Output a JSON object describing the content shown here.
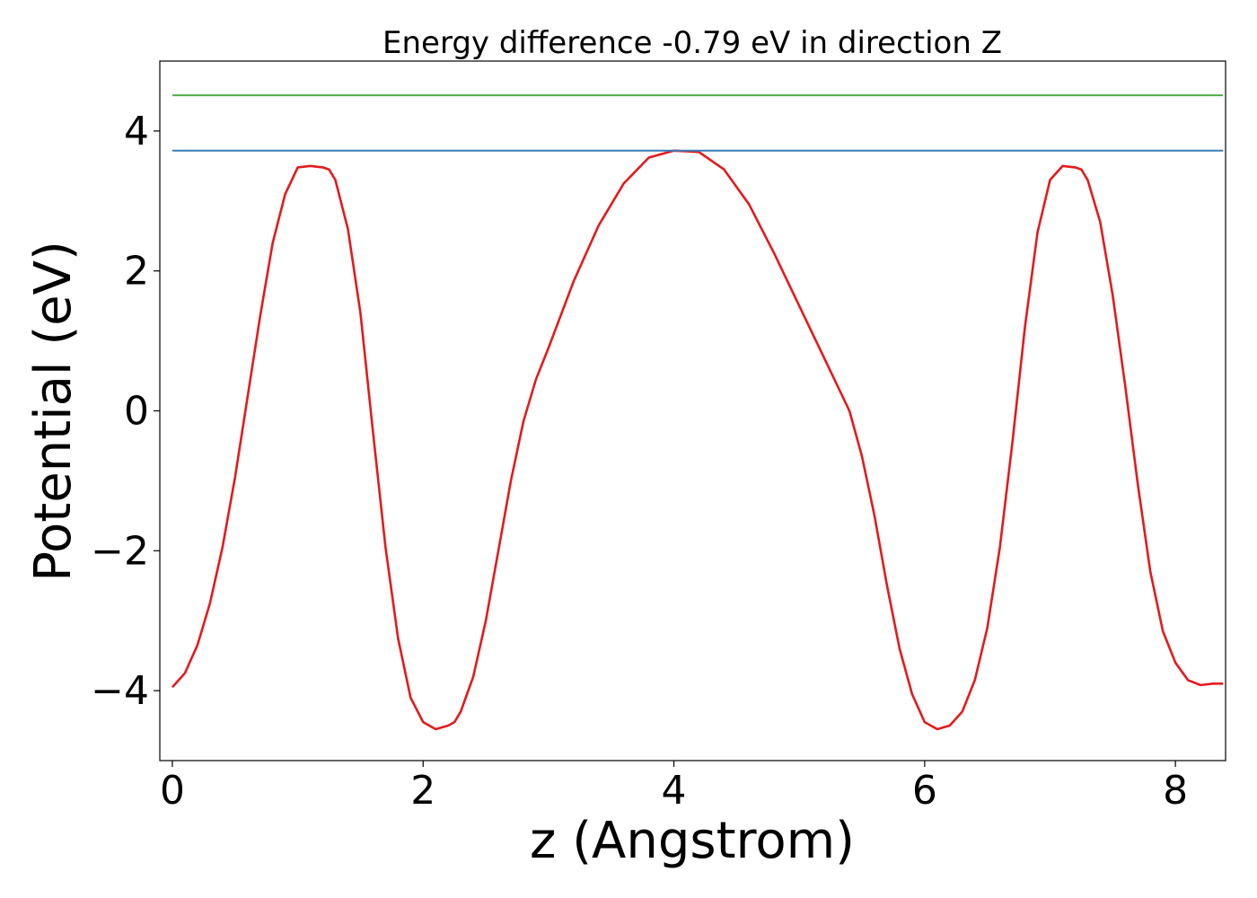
{
  "chart_data": {
    "type": "line",
    "title": "Energy difference -0.79 eV in direction Z",
    "xlabel": "z (Angstrom)",
    "ylabel": "Potential (eV)",
    "xlim": [
      -0.1,
      8.4
    ],
    "ylim": [
      -5.0,
      5.0
    ],
    "xticks": [
      0,
      2,
      4,
      6,
      8
    ],
    "xtick_labels": [
      "0",
      "2",
      "4",
      "6",
      "8"
    ],
    "yticks": [
      -4,
      -2,
      0,
      2,
      4
    ],
    "ytick_labels": [
      "−4",
      "−2",
      "0",
      "2",
      "4"
    ],
    "grid": false,
    "legend": "none",
    "series": [
      {
        "color": "#e41a1c",
        "x": [
          0.0,
          0.1,
          0.2,
          0.3,
          0.4,
          0.5,
          0.6,
          0.7,
          0.8,
          0.9,
          1.0,
          1.1,
          1.2,
          1.25,
          1.3,
          1.4,
          1.5,
          1.6,
          1.7,
          1.8,
          1.9,
          2.0,
          2.1,
          2.2,
          2.25,
          2.3,
          2.4,
          2.5,
          2.6,
          2.7,
          2.8,
          2.9,
          3.0,
          3.2,
          3.4,
          3.6,
          3.8,
          4.0,
          4.2,
          4.4,
          4.6,
          4.8,
          5.0,
          5.2,
          5.4,
          5.5,
          5.6,
          5.7,
          5.8,
          5.9,
          6.0,
          6.1,
          6.2,
          6.3,
          6.4,
          6.5,
          6.6,
          6.7,
          6.8,
          6.9,
          7.0,
          7.1,
          7.2,
          7.25,
          7.3,
          7.4,
          7.5,
          7.6,
          7.7,
          7.8,
          7.9,
          8.0,
          8.1,
          8.2,
          8.3,
          8.38
        ],
        "y": [
          -3.95,
          -3.75,
          -3.35,
          -2.75,
          -1.95,
          -0.95,
          0.2,
          1.35,
          2.4,
          3.1,
          3.48,
          3.5,
          3.48,
          3.45,
          3.3,
          2.6,
          1.4,
          -0.3,
          -1.95,
          -3.25,
          -4.1,
          -4.45,
          -4.55,
          -4.5,
          -4.45,
          -4.3,
          -3.8,
          -3.0,
          -2.0,
          -1.0,
          -0.15,
          0.45,
          0.9,
          1.85,
          2.65,
          3.25,
          3.62,
          3.72,
          3.7,
          3.45,
          2.95,
          2.25,
          1.5,
          0.75,
          0.0,
          -0.65,
          -1.5,
          -2.5,
          -3.4,
          -4.05,
          -4.45,
          -4.55,
          -4.5,
          -4.3,
          -3.85,
          -3.1,
          -1.95,
          -0.45,
          1.2,
          2.55,
          3.3,
          3.5,
          3.48,
          3.45,
          3.3,
          2.7,
          1.65,
          0.35,
          -1.05,
          -2.3,
          -3.15,
          -3.6,
          -3.85,
          -3.92,
          -3.9,
          -3.9
        ]
      },
      {
        "color": "#377eb8",
        "x": [
          0.0,
          8.38
        ],
        "y": [
          3.72,
          3.72
        ]
      },
      {
        "color": "#4daf4a",
        "x": [
          0.0,
          8.38
        ],
        "y": [
          4.51,
          4.51
        ]
      }
    ]
  }
}
